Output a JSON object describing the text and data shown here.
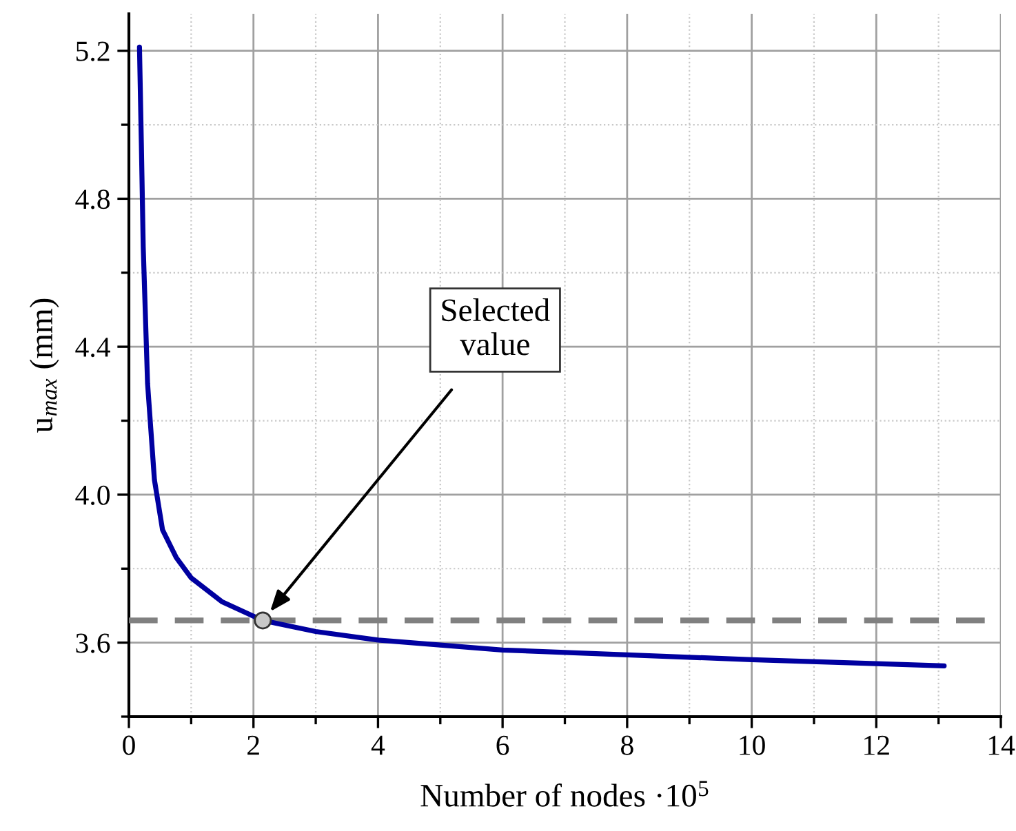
{
  "chart_data": {
    "type": "line",
    "xlabel": "Number of nodes ·10$^{5}$",
    "ylabel": "u$_{max}$ (mm)",
    "xlim": [
      0,
      14
    ],
    "xticks": [
      0,
      2,
      4,
      6,
      8,
      10,
      12,
      14
    ],
    "ylim": [
      3.4,
      5.3
    ],
    "yticks": [
      3.6,
      {
        "value": 4.0,
        "label": "4.0"
      },
      4.4,
      4.8,
      5.2
    ],
    "grid": true,
    "legend": false,
    "series": [
      {
        "color": "#0000a0",
        "x": [
          0.17,
          0.2,
          0.23,
          0.3,
          0.41,
          0.54,
          0.76,
          1.0,
          1.5,
          2.15,
          3.0,
          4.0,
          6.0,
          8.0,
          10.0,
          12.0,
          13.09
        ],
        "values": [
          5.21,
          4.95,
          4.67,
          4.3,
          4.04,
          3.905,
          3.83,
          3.775,
          3.71,
          3.66,
          3.63,
          3.607,
          3.58,
          3.567,
          3.554,
          3.543,
          3.537
        ]
      },
      {
        "type": "scatter",
        "color": "#c8c8c8",
        "marker": "circle",
        "x": [
          2.15
        ],
        "values": [
          3.66
        ]
      }
    ],
    "ref_lines": [
      {
        "axis": "y",
        "value": 3.66,
        "color": "#808080",
        "line_style": "dashed"
      }
    ],
    "annotations": [
      "Selected\nvalue"
    ]
  }
}
